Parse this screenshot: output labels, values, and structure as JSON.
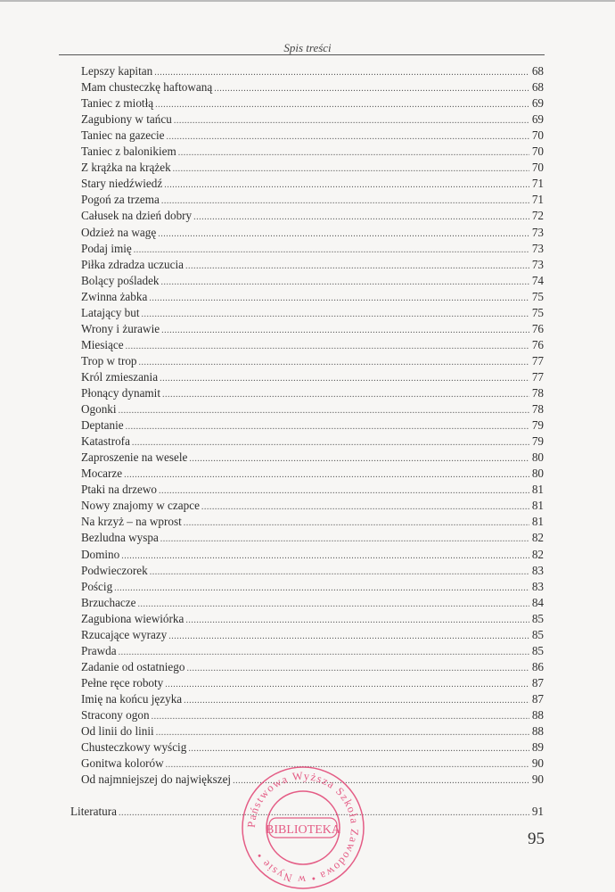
{
  "header": {
    "title": "Spis treści"
  },
  "entries": [
    {
      "title": "Lepszy kapitan",
      "page": "68"
    },
    {
      "title": "Mam chusteczkę haftowaną",
      "page": "68"
    },
    {
      "title": "Taniec z miotłą",
      "page": "69"
    },
    {
      "title": "Zagubiony w tańcu",
      "page": "69"
    },
    {
      "title": "Taniec na gazecie",
      "page": "70"
    },
    {
      "title": "Taniec z balonikiem",
      "page": "70"
    },
    {
      "title": "Z krążka na krążek",
      "page": "70"
    },
    {
      "title": "Stary niedźwiedź",
      "page": "71"
    },
    {
      "title": "Pogoń za trzema",
      "page": "71"
    },
    {
      "title": "Całusek na dzień dobry",
      "page": "72"
    },
    {
      "title": "Odzież na wagę",
      "page": "73"
    },
    {
      "title": "Podaj imię",
      "page": "73"
    },
    {
      "title": "Piłka zdradza uczucia",
      "page": "73"
    },
    {
      "title": "Bolący pośladek",
      "page": "74"
    },
    {
      "title": "Zwinna żabka",
      "page": "75"
    },
    {
      "title": "Latający but",
      "page": "75"
    },
    {
      "title": "Wrony i żurawie",
      "page": "76"
    },
    {
      "title": "Miesiące",
      "page": "76"
    },
    {
      "title": "Trop w trop",
      "page": "77"
    },
    {
      "title": "Król zmieszania",
      "page": "77"
    },
    {
      "title": "Płonący dynamit",
      "page": "78"
    },
    {
      "title": "Ogonki",
      "page": "78"
    },
    {
      "title": "Deptanie",
      "page": "79"
    },
    {
      "title": "Katastrofa",
      "page": "79"
    },
    {
      "title": "Zaproszenie na wesele",
      "page": "80"
    },
    {
      "title": "Mocarze",
      "page": "80"
    },
    {
      "title": "Ptaki na drzewo",
      "page": "81"
    },
    {
      "title": "Nowy znajomy w czapce",
      "page": "81"
    },
    {
      "title": "Na krzyż – na wprost",
      "page": "81"
    },
    {
      "title": "Bezludna wyspa",
      "page": "82"
    },
    {
      "title": "Domino",
      "page": "82"
    },
    {
      "title": "Podwieczorek",
      "page": "83"
    },
    {
      "title": "Pościg",
      "page": "83"
    },
    {
      "title": "Brzuchacze",
      "page": "84"
    },
    {
      "title": "Zagubiona wiewiórka",
      "page": "85"
    },
    {
      "title": "Rzucające wyrazy",
      "page": "85"
    },
    {
      "title": "Prawda",
      "page": "85"
    },
    {
      "title": "Zadanie od ostatniego",
      "page": "86"
    },
    {
      "title": "Pełne ręce roboty",
      "page": "87"
    },
    {
      "title": "Imię na końcu języka",
      "page": "87"
    },
    {
      "title": "Stracony ogon",
      "page": "88"
    },
    {
      "title": "Od linii do linii",
      "page": "88"
    },
    {
      "title": "Chusteczkowy wyścig",
      "page": "89"
    },
    {
      "title": "Gonitwa kolorów",
      "page": "90"
    },
    {
      "title": "Od najmniejszej do największej",
      "page": "90"
    }
  ],
  "literature": {
    "title": "Literatura",
    "page": "91"
  },
  "page_number": "95",
  "stamp": {
    "ring_text": "Państwowa Wyższa Szkoła Zawodowa • w Nysie •",
    "center_text": "BIBLIOTEKA",
    "color": "#e0366a"
  }
}
